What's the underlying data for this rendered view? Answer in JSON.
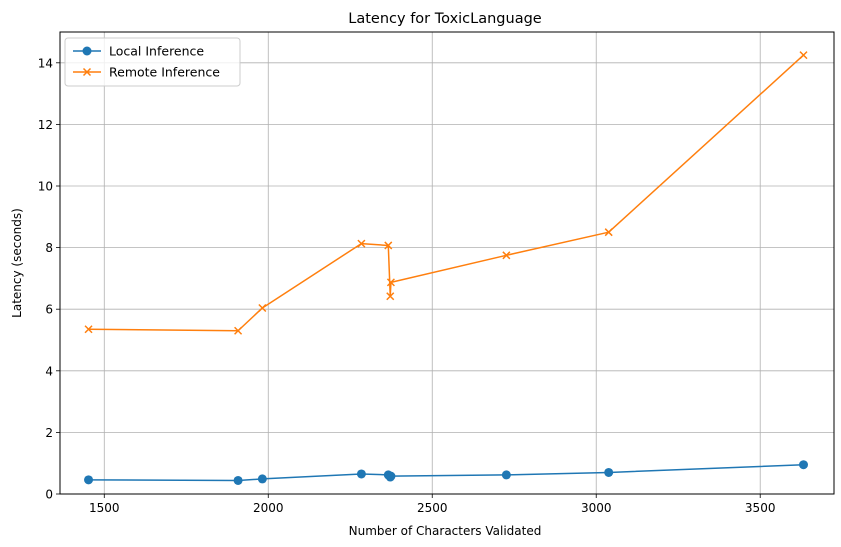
{
  "chart_data": {
    "type": "line",
    "title": "Latency for ToxicLanguage",
    "xlabel": "Number of Characters Validated",
    "ylabel": "Latency (seconds)",
    "xlim": [
      1365,
      3725
    ],
    "ylim": [
      0,
      15
    ],
    "xticks": [
      1500,
      2000,
      2500,
      3000,
      3500
    ],
    "yticks": [
      0,
      2,
      4,
      6,
      8,
      10,
      12,
      14
    ],
    "grid": true,
    "legend_position": "top-left",
    "series": [
      {
        "name": "Local Inference",
        "color": "#1f77b4",
        "marker": "circle",
        "x": [
          1452,
          1908,
          1982,
          2284,
          2366,
          2372,
          2374,
          2726,
          3038,
          3632
        ],
        "y": [
          0.46,
          0.44,
          0.49,
          0.65,
          0.62,
          0.55,
          0.58,
          0.62,
          0.7,
          0.95
        ]
      },
      {
        "name": "Remote Inference",
        "color": "#ff7f0e",
        "marker": "x",
        "x": [
          1452,
          1908,
          1982,
          2284,
          2366,
          2372,
          2374,
          2726,
          3038,
          3632
        ],
        "y": [
          5.35,
          5.3,
          6.04,
          8.13,
          8.07,
          6.42,
          6.87,
          7.75,
          8.5,
          14.25
        ]
      }
    ]
  }
}
